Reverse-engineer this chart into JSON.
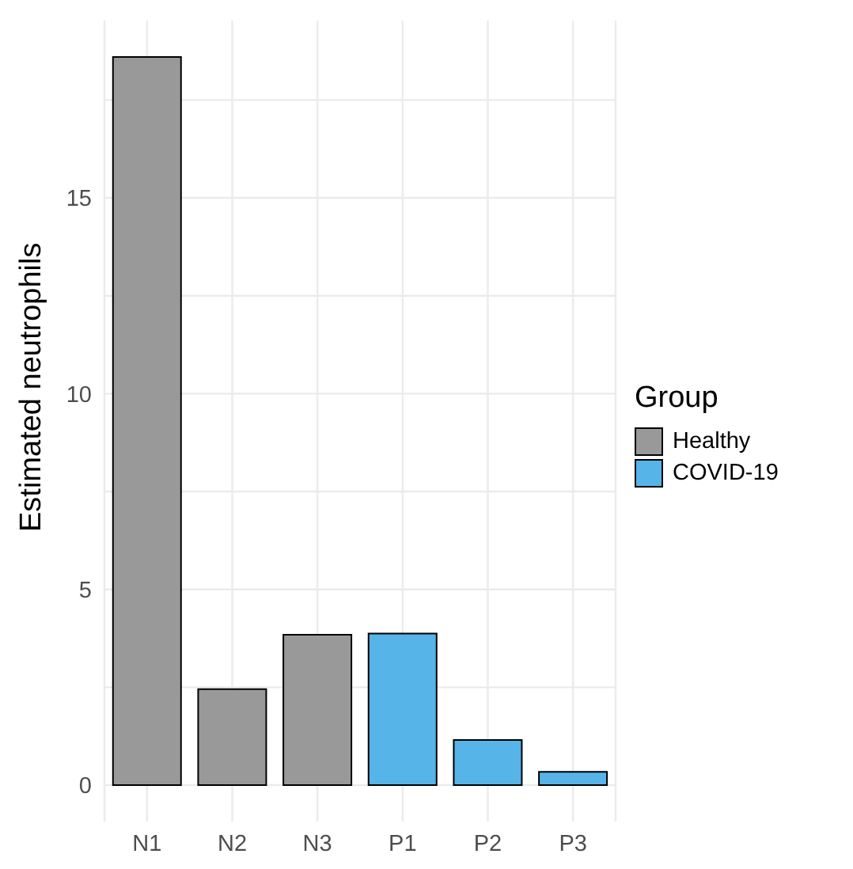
{
  "chart_data": {
    "type": "bar",
    "ylabel": "Estimated neutrophils",
    "legend_title": "Group",
    "categories": [
      "N1",
      "N2",
      "N3",
      "P1",
      "P2",
      "P3"
    ],
    "stacked": true,
    "series": [
      {
        "name": "Healthy",
        "color": "#999999",
        "values": [
          18.6,
          2.45,
          3.84,
          null,
          null,
          null
        ]
      },
      {
        "name": "COVID-19",
        "color": "#56b4e9",
        "values": [
          null,
          null,
          null,
          3.87,
          1.15,
          0.34
        ]
      }
    ],
    "ylim": [
      -0.93,
      19.53
    ],
    "yticks": [
      0,
      {
        "value": 2.5,
        "label": null
      },
      5,
      {
        "value": 7.5,
        "label": null
      },
      10,
      {
        "value": 12.5,
        "label": null
      },
      15,
      {
        "value": 17.5,
        "label": null
      }
    ],
    "grid": true,
    "legend": "right"
  }
}
